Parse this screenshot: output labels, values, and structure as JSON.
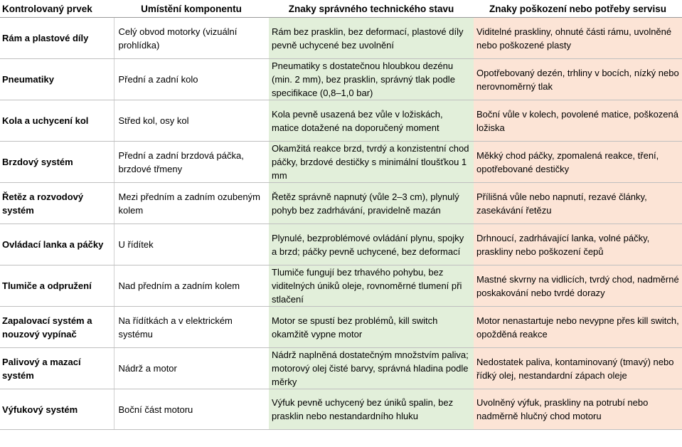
{
  "headers": {
    "item": "Kontrolovaný prvek",
    "location": "Umístění komponentu",
    "ok": "Znaky správného technického stavu",
    "damage": "Znaky poškození nebo potřeby servisu"
  },
  "rows": [
    {
      "item": "Rám a plastové díly",
      "location": "Celý obvod motorky (vizuální prohlídka)",
      "ok": "Rám bez prasklin, bez deformací, plastové díly pevně uchycené bez uvolnění",
      "damage": "Viditelné praskliny, ohnuté části rámu, uvolněné nebo poškozené plasty"
    },
    {
      "item": "Pneumatiky",
      "location": "Přední a zadní kolo",
      "ok": "Pneumatiky s dostatečnou hloubkou dezénu (min. 2 mm), bez prasklin, správný tlak podle specifikace (0,8–1,0 bar)",
      "damage": "Opotřebovaný dezén, trhliny v bocích, nízký nebo nerovnoměrný tlak"
    },
    {
      "item": "Kola a uchycení kol",
      "location": "Střed kol, osy kol",
      "ok": "Kola pevně usazená bez vůle v ložiskách, matice dotažené na doporučený moment",
      "damage": "Boční vůle v kolech, povolené matice, poškozená ložiska"
    },
    {
      "item": "Brzdový systém",
      "location": "Přední a zadní brzdová páčka, brzdové třmeny",
      "ok": "Okamžitá reakce brzd, tvrdý a konzistentní chod páčky, brzdové destičky s minimální tloušťkou 1 mm",
      "damage": "Měkký chod páčky, zpomalená reakce, tření, opotřebované destičky"
    },
    {
      "item": "Řetěz a rozvodový systém",
      "location": "Mezi předním a zadním ozubeným kolem",
      "ok": "Řetěz správně napnutý (vůle 2–3 cm), plynulý pohyb bez zadrhávání, pravidelně mazán",
      "damage": "Přílišná vůle nebo napnutí, rezavé články, zasekávání řetězu"
    },
    {
      "item": "Ovládací lanka a páčky",
      "location": "U řídítek",
      "ok": "Plynulé, bezproblémové ovládání plynu, spojky a brzd; páčky pevně uchycené, bez deformací",
      "damage": "Drhnoucí, zadrhávající lanka, volné páčky, praskliny nebo poškození čepů"
    },
    {
      "item": "Tlumiče a odpružení",
      "location": "Nad předním a zadním kolem",
      "ok": "Tlumiče fungují bez trhavého pohybu, bez viditelných úniků oleje, rovnoměrné tlumení při stlačení",
      "damage": "Mastné skvrny na vidlicích, tvrdý chod, nadměrné poskakování nebo tvrdé dorazy"
    },
    {
      "item": "Zapalovací systém a nouzový vypínač",
      "location": "Na řídítkách a v elektrickém systému",
      "ok": "Motor se spustí bez problémů, kill switch okamžitě vypne motor",
      "damage": "Motor nenastartuje nebo nevypne přes kill switch, opožděná reakce"
    },
    {
      "item": "Palivový a mazací systém",
      "location": "Nádrž a motor",
      "ok": "Nádrž naplněná dostatečným množstvím paliva; motorový olej čisté barvy, správná hladina podle měrky",
      "damage": "Nedostatek paliva, kontaminovaný (tmavý) nebo řídký olej, nestandardní zápach oleje"
    },
    {
      "item": "Výfukový systém",
      "location": "Boční část motoru",
      "ok": "Výfuk pevně uchycený bez úniků spalin, bez prasklin nebo nestandardního hluku",
      "damage": "Uvolněný výfuk, praskliny na potrubí nebo nadměrně hlučný chod motoru"
    }
  ]
}
